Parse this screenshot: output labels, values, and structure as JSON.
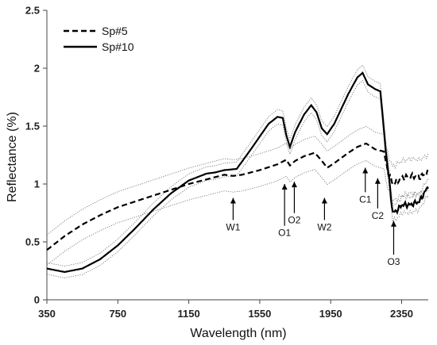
{
  "chart_data": {
    "type": "line",
    "xlabel": "Wavelength (nm)",
    "ylabel": "Reflectance (%)",
    "xlim": [
      350,
      2500
    ],
    "ylim": [
      0,
      2.5
    ],
    "x_ticks": [
      "350",
      "750",
      "1150",
      "1550",
      "1950",
      "2350"
    ],
    "y_ticks": [
      "0",
      "0.5",
      "1",
      "1.5",
      "2",
      "2.5"
    ],
    "grid": false,
    "legend_position": "top-left",
    "series": [
      {
        "name": "Sp#5",
        "style": "dashed",
        "color": "#000000",
        "points": [
          [
            350,
            0.43
          ],
          [
            450,
            0.55
          ],
          [
            550,
            0.65
          ],
          [
            650,
            0.73
          ],
          [
            750,
            0.8
          ],
          [
            850,
            0.85
          ],
          [
            950,
            0.9
          ],
          [
            1050,
            0.95
          ],
          [
            1150,
            1.0
          ],
          [
            1250,
            1.04
          ],
          [
            1350,
            1.08
          ],
          [
            1400,
            1.07
          ],
          [
            1450,
            1.08
          ],
          [
            1550,
            1.12
          ],
          [
            1650,
            1.17
          ],
          [
            1700,
            1.21
          ],
          [
            1720,
            1.16
          ],
          [
            1750,
            1.2
          ],
          [
            1800,
            1.24
          ],
          [
            1860,
            1.27
          ],
          [
            1900,
            1.2
          ],
          [
            1930,
            1.14
          ],
          [
            1970,
            1.18
          ],
          [
            2050,
            1.27
          ],
          [
            2100,
            1.32
          ],
          [
            2150,
            1.35
          ],
          [
            2200,
            1.3
          ],
          [
            2250,
            1.28
          ],
          [
            2270,
            1.12
          ],
          [
            2300,
            1.0
          ],
          [
            2350,
            1.05
          ],
          [
            2400,
            1.07
          ],
          [
            2450,
            1.06
          ],
          [
            2500,
            1.1
          ]
        ]
      },
      {
        "name": "Sp#10",
        "style": "solid",
        "color": "#000000",
        "points": [
          [
            350,
            0.27
          ],
          [
            450,
            0.24
          ],
          [
            550,
            0.27
          ],
          [
            650,
            0.35
          ],
          [
            750,
            0.47
          ],
          [
            850,
            0.62
          ],
          [
            950,
            0.78
          ],
          [
            1050,
            0.92
          ],
          [
            1150,
            1.03
          ],
          [
            1250,
            1.09
          ],
          [
            1300,
            1.1
          ],
          [
            1350,
            1.12
          ],
          [
            1420,
            1.13
          ],
          [
            1500,
            1.3
          ],
          [
            1600,
            1.52
          ],
          [
            1650,
            1.58
          ],
          [
            1680,
            1.57
          ],
          [
            1700,
            1.42
          ],
          [
            1720,
            1.32
          ],
          [
            1750,
            1.45
          ],
          [
            1800,
            1.6
          ],
          [
            1840,
            1.68
          ],
          [
            1870,
            1.62
          ],
          [
            1900,
            1.48
          ],
          [
            1930,
            1.43
          ],
          [
            1970,
            1.52
          ],
          [
            2050,
            1.78
          ],
          [
            2100,
            1.92
          ],
          [
            2130,
            1.96
          ],
          [
            2160,
            1.86
          ],
          [
            2200,
            1.82
          ],
          [
            2230,
            1.8
          ],
          [
            2260,
            1.3
          ],
          [
            2300,
            0.75
          ],
          [
            2330,
            0.78
          ],
          [
            2350,
            0.82
          ],
          [
            2400,
            0.82
          ],
          [
            2450,
            0.85
          ],
          [
            2500,
            0.98
          ]
        ]
      }
    ],
    "annotations": [
      {
        "label": "W1",
        "x": 1400,
        "y_tip": 0.88,
        "y_label": 0.6
      },
      {
        "label": "O1",
        "x": 1690,
        "y_tip": 1.0,
        "y_label": 0.55
      },
      {
        "label": "O2",
        "x": 1745,
        "y_tip": 1.02,
        "y_label": 0.66
      },
      {
        "label": "W2",
        "x": 1915,
        "y_tip": 0.88,
        "y_label": 0.6
      },
      {
        "label": "C1",
        "x": 2145,
        "y_tip": 1.14,
        "y_label": 0.84
      },
      {
        "label": "C2",
        "x": 2215,
        "y_tip": 1.05,
        "y_label": 0.7
      },
      {
        "label": "O3",
        "x": 2305,
        "y_tip": 0.68,
        "y_label": 0.3
      }
    ]
  }
}
